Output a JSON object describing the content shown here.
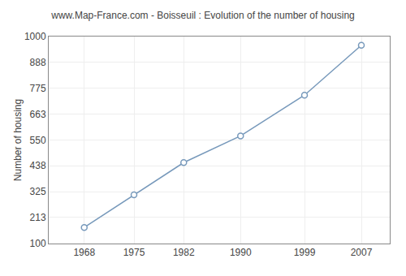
{
  "chart_data": {
    "type": "line",
    "title": "www.Map-France.com - Boisseuil : Evolution of the number of housing",
    "ylabel": "Number of housing",
    "x": [
      1968,
      1975,
      1982,
      1990,
      1999,
      2007
    ],
    "values": [
      170,
      312,
      452,
      568,
      745,
      962
    ],
    "color": "#7799bb",
    "marker": "circle",
    "xlim": [
      1963,
      2011
    ],
    "xticks": [
      1968,
      1975,
      1982,
      1990,
      1999,
      2007
    ],
    "ylim": [
      100,
      1000
    ],
    "yticks": [
      100,
      213,
      325,
      438,
      550,
      663,
      775,
      888,
      1000
    ],
    "grid": true
  }
}
